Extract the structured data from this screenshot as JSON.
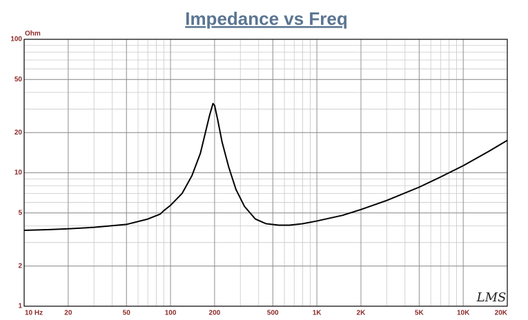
{
  "chart_data": {
    "type": "line",
    "title": "Impedance vs Freq",
    "y_label": "Ohm",
    "watermark": "LMS",
    "x": [
      10,
      15,
      20,
      30,
      50,
      70,
      85,
      90,
      100,
      120,
      140,
      160,
      175,
      185,
      195,
      200,
      210,
      225,
      250,
      280,
      320,
      380,
      450,
      550,
      650,
      800,
      1000,
      1500,
      2000,
      3000,
      5000,
      7000,
      10000,
      15000,
      20000
    ],
    "values": [
      3.7,
      3.75,
      3.8,
      3.9,
      4.1,
      4.5,
      4.9,
      5.2,
      5.7,
      7.0,
      9.5,
      14,
      21,
      27,
      33,
      32,
      25,
      17,
      11,
      7.5,
      5.6,
      4.5,
      4.15,
      4.05,
      4.05,
      4.15,
      4.35,
      4.8,
      5.3,
      6.2,
      7.8,
      9.3,
      11.3,
      14.5,
      17.5
    ],
    "color": "#000000",
    "xlog": true,
    "ylog": true,
    "grid": true,
    "xlim": [
      10,
      20000
    ],
    "ylim": [
      1,
      100
    ],
    "xticks": [
      {
        "value": 10,
        "label": "10 Hz"
      },
      20,
      50,
      100,
      200,
      500,
      {
        "value": 1000,
        "label": "1K"
      },
      {
        "value": 2000,
        "label": "2K"
      },
      {
        "value": 5000,
        "label": "5K"
      },
      {
        "value": 10000,
        "label": "10K"
      },
      {
        "value": 20000,
        "label": "20K"
      }
    ],
    "yticks": [
      1,
      2,
      5,
      10,
      20,
      50,
      100
    ]
  }
}
